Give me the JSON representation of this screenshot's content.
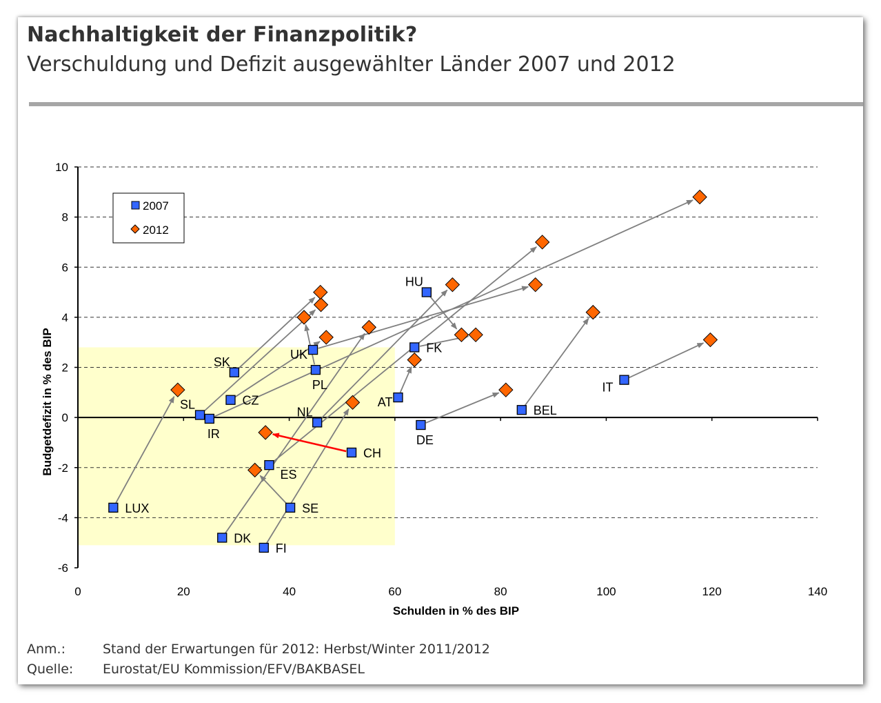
{
  "header": {
    "title": "Nachhaltigkeit der Finanzpolitik?",
    "subtitle": "Verschuldung und Defizit ausgewählter Länder 2007 und 2012"
  },
  "notes": {
    "anm_label": "Anm.:",
    "anm_text": "Stand der Erwartungen für 2012: Herbst/Winter 2011/2012",
    "quelle_label": "Quelle:",
    "quelle_text": "Eurostat/EU Kommission/EFV/BAKBASEL"
  },
  "chart_data": {
    "type": "scatter",
    "xlabel": "Schulden in % des BIP",
    "ylabel": "Budgetdefizit in % des BIP",
    "xlim": [
      0,
      140
    ],
    "ylim": [
      -6,
      10
    ],
    "xticks": [
      0,
      20,
      40,
      60,
      80,
      100,
      120,
      140
    ],
    "yticks": [
      -6,
      -4,
      -2,
      0,
      2,
      4,
      6,
      8,
      10
    ],
    "grid": "horizontal dashed",
    "legend_position": "top-left",
    "series": [
      {
        "name": "2007",
        "marker": "square",
        "color": "#3366ff"
      },
      {
        "name": "2012",
        "marker": "diamond",
        "color": "#ff6600"
      }
    ],
    "highlight_region": {
      "x": [
        0,
        60
      ],
      "y": [
        -5.1,
        2.8
      ],
      "color": "#ffffcc"
    },
    "arrow_color": "#7f7f7f",
    "highlight_arrow_color": "#ff0000",
    "countries": [
      {
        "label": "LUX",
        "y2007": [
          6.7,
          -3.6
        ],
        "y2012": [
          18.9,
          1.1
        ],
        "label_pos": "right"
      },
      {
        "label": "SL",
        "y2007": [
          23.1,
          0.1
        ],
        "y2012": [
          46.0,
          4.5
        ],
        "label_pos": "upleft"
      },
      {
        "label": "IR",
        "y2007": [
          24.9,
          -0.05
        ],
        "y2012": [
          117.7,
          8.8
        ],
        "label_pos": "below"
      },
      {
        "label": "SK",
        "y2007": [
          29.6,
          1.8
        ],
        "y2012": [
          45.9,
          5.0
        ],
        "label_pos": "upleft"
      },
      {
        "label": "CZ",
        "y2007": [
          28.9,
          0.7
        ],
        "y2012": [
          47.0,
          3.2
        ],
        "label_pos": "right"
      },
      {
        "label": "DK",
        "y2007": [
          27.3,
          -4.8
        ],
        "y2012": [
          55.1,
          3.6
        ],
        "label_pos": "right"
      },
      {
        "label": "FI",
        "y2007": [
          35.2,
          -5.2
        ],
        "y2012": [
          52.0,
          0.6
        ],
        "label_pos": "right"
      },
      {
        "label": "SE",
        "y2007": [
          40.2,
          -3.6
        ],
        "y2012": [
          33.5,
          -2.1
        ],
        "label_pos": "right"
      },
      {
        "label": "ES",
        "y2007": [
          36.2,
          -1.9
        ],
        "y2012": [
          87.9,
          7.0
        ],
        "label_pos": "belowright"
      },
      {
        "label": "CH",
        "y2007": [
          51.8,
          -1.4
        ],
        "y2012": [
          35.5,
          -0.6
        ],
        "label_pos": "right",
        "highlight": true
      },
      {
        "label": "UK",
        "y2007": [
          44.5,
          2.7
        ],
        "y2012": [
          86.6,
          5.3
        ],
        "label_pos": "left"
      },
      {
        "label": "PL",
        "y2007": [
          45.0,
          1.9
        ],
        "y2012": [
          42.8,
          4.0
        ],
        "label_pos": "below"
      },
      {
        "label": "NL",
        "y2007": [
          45.3,
          -0.2
        ],
        "y2012": [
          70.9,
          5.3
        ],
        "label_pos": "upleft"
      },
      {
        "label": "HU",
        "y2007": [
          66.0,
          5.0
        ],
        "y2012": [
          72.6,
          3.3
        ],
        "label_pos": "upleft"
      },
      {
        "label": "FK",
        "y2007": [
          63.7,
          2.8
        ],
        "y2012": [
          75.3,
          3.3
        ],
        "label_pos": "right"
      },
      {
        "label": "AT",
        "y2007": [
          60.6,
          0.8
        ],
        "y2012": [
          63.7,
          2.3
        ],
        "label_pos": "left"
      },
      {
        "label": "DE",
        "y2007": [
          64.9,
          -0.3
        ],
        "y2012": [
          81.0,
          1.1
        ],
        "label_pos": "below"
      },
      {
        "label": "BEL",
        "y2007": [
          84.0,
          0.3
        ],
        "y2012": [
          97.5,
          4.2
        ],
        "label_pos": "right"
      },
      {
        "label": "IT",
        "y2007": [
          103.4,
          1.5
        ],
        "y2012": [
          119.7,
          3.1
        ],
        "label_pos": "belowleft"
      }
    ]
  }
}
